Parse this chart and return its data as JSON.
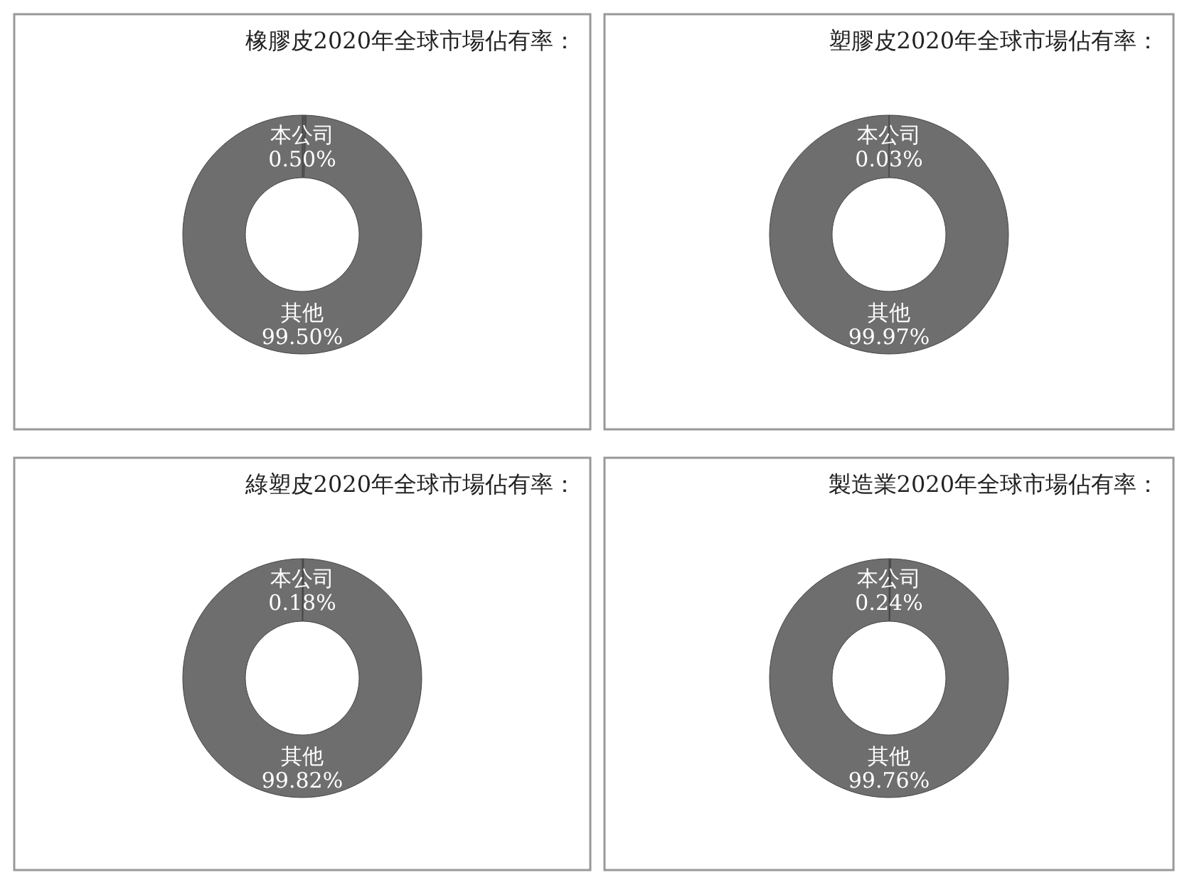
{
  "chart_data": [
    {
      "type": "donut",
      "title": "橡膠皮2020年全球市場佔有率：",
      "categories": [
        "本公司",
        "其他"
      ],
      "values": [
        0.5,
        99.5
      ],
      "value_labels": [
        "0.50%",
        "99.50%"
      ],
      "colors": [
        "#555555",
        "#6e6e6e"
      ]
    },
    {
      "type": "donut",
      "title": "塑膠皮2020年全球市場佔有率：",
      "categories": [
        "本公司",
        "其他"
      ],
      "values": [
        0.03,
        99.97
      ],
      "value_labels": [
        "0.03%",
        "99.97%"
      ],
      "colors": [
        "#555555",
        "#6e6e6e"
      ]
    },
    {
      "type": "donut",
      "title": "綠塑皮2020年全球市場佔有率：",
      "categories": [
        "本公司",
        "其他"
      ],
      "values": [
        0.18,
        99.82
      ],
      "value_labels": [
        "0.18%",
        "99.82%"
      ],
      "colors": [
        "#555555",
        "#6e6e6e"
      ]
    },
    {
      "type": "donut",
      "title": "製造業2020年全球市場佔有率：",
      "categories": [
        "本公司",
        "其他"
      ],
      "values": [
        0.24,
        99.76
      ],
      "value_labels": [
        "0.24%",
        "99.76%"
      ],
      "colors": [
        "#555555",
        "#6e6e6e"
      ]
    }
  ]
}
